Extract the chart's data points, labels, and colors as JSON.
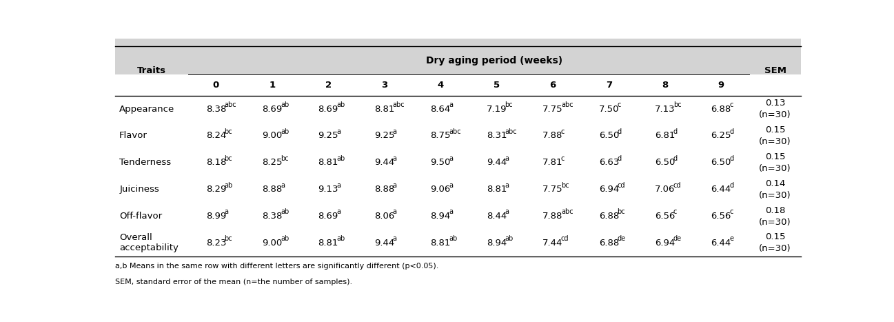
{
  "title": "Dry aging period (weeks)",
  "col_headers": [
    "0",
    "1",
    "2",
    "3",
    "4",
    "5",
    "6",
    "7",
    "8",
    "9"
  ],
  "sem_header": "SEM",
  "traits_header": "Traits",
  "rows": [
    {
      "trait": "Appearance",
      "values": [
        "8.38",
        "8.69",
        "8.69",
        "8.81",
        "8.64",
        "7.19",
        "7.75",
        "7.50",
        "7.13",
        "6.88"
      ],
      "sups": [
        "abc",
        "ab",
        "ab",
        "abc",
        "a",
        "bc",
        "abc",
        "c",
        "bc",
        "c"
      ],
      "sem": "0.13\n(n=30)"
    },
    {
      "trait": "Flavor",
      "values": [
        "8.24",
        "9.00",
        "9.25",
        "9.25",
        "8.75",
        "8.31",
        "7.88",
        "6.50",
        "6.81",
        "6.25"
      ],
      "sups": [
        "bc",
        "ab",
        "a",
        "a",
        "abc",
        "abc",
        "c",
        "d",
        "d",
        "d"
      ],
      "sem": "0.15\n(n=30)"
    },
    {
      "trait": "Tenderness",
      "values": [
        "8.18",
        "8.25",
        "8.81",
        "9.44",
        "9.50",
        "9.44",
        "7.81",
        "6.63",
        "6.50",
        "6.50"
      ],
      "sups": [
        "bc",
        "bc",
        "ab",
        "a",
        "a",
        "a",
        "c",
        "d",
        "d",
        "d"
      ],
      "sem": "0.15\n(n=30)"
    },
    {
      "trait": "Juiciness",
      "values": [
        "8.29",
        "8.88",
        "9.13",
        "8.88",
        "9.06",
        "8.81",
        "7.75",
        "6.94",
        "7.06",
        "6.44"
      ],
      "sups": [
        "ab",
        "a",
        "a",
        "a",
        "a",
        "a",
        "bc",
        "cd",
        "cd",
        "d"
      ],
      "sem": "0.14\n(n=30)"
    },
    {
      "trait": "Off-flavor",
      "values": [
        "8.99",
        "8.38",
        "8.69",
        "8.06",
        "8.94",
        "8.44",
        "7.88",
        "6.88",
        "6.56",
        "6.56"
      ],
      "sups": [
        "a",
        "ab",
        "a",
        "a",
        "a",
        "a",
        "abc",
        "bc",
        "c",
        "c"
      ],
      "sem": "0.18\n(n=30)"
    },
    {
      "trait": "Overall\nacceptability",
      "values": [
        "8.23",
        "9.00",
        "8.81",
        "9.44",
        "8.81",
        "8.94",
        "7.44",
        "6.88",
        "6.94",
        "6.44"
      ],
      "sups": [
        "bc",
        "ab",
        "ab",
        "a",
        "ab",
        "ab",
        "cd",
        "de",
        "de",
        "e"
      ],
      "sem": "0.15\n(n=30)"
    }
  ],
  "footnote1": "a,b Means in the same row with different letters are significantly different (p<0.05).",
  "footnote2": "SEM, standard error of the mean (n=the number of samples).",
  "header_bg": "#d3d3d3",
  "bg_color": "#ffffff",
  "text_color": "#000000",
  "font_size": 9.5,
  "title_font_size": 10,
  "sup_font_size": 7.0,
  "footnote_font_size": 8.0
}
